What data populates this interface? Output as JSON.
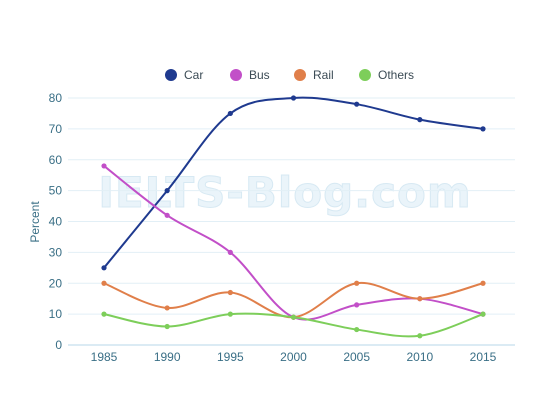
{
  "watermark": "IELTS-Blog.com",
  "chart_data": {
    "type": "line",
    "title": "",
    "xlabel": "",
    "ylabel": "Percent",
    "x": [
      1985,
      1990,
      1995,
      2000,
      2005,
      2010,
      2015
    ],
    "ylim": [
      0,
      80
    ],
    "yticks": [
      0,
      10,
      20,
      30,
      40,
      50,
      60,
      70,
      80
    ],
    "grid": true,
    "legend_position": "top",
    "series": [
      {
        "name": "Car",
        "color": "#1f3a8f",
        "values": [
          25,
          50,
          75,
          80,
          78,
          73,
          70
        ]
      },
      {
        "name": "Bus",
        "color": "#c24fc8",
        "values": [
          58,
          42,
          30,
          9,
          13,
          15,
          10
        ]
      },
      {
        "name": "Rail",
        "color": "#e07f4a",
        "values": [
          20,
          12,
          17,
          9,
          20,
          15,
          20
        ]
      },
      {
        "name": "Others",
        "color": "#7dce5a",
        "values": [
          10,
          6,
          10,
          9,
          5,
          3,
          10
        ]
      }
    ]
  }
}
